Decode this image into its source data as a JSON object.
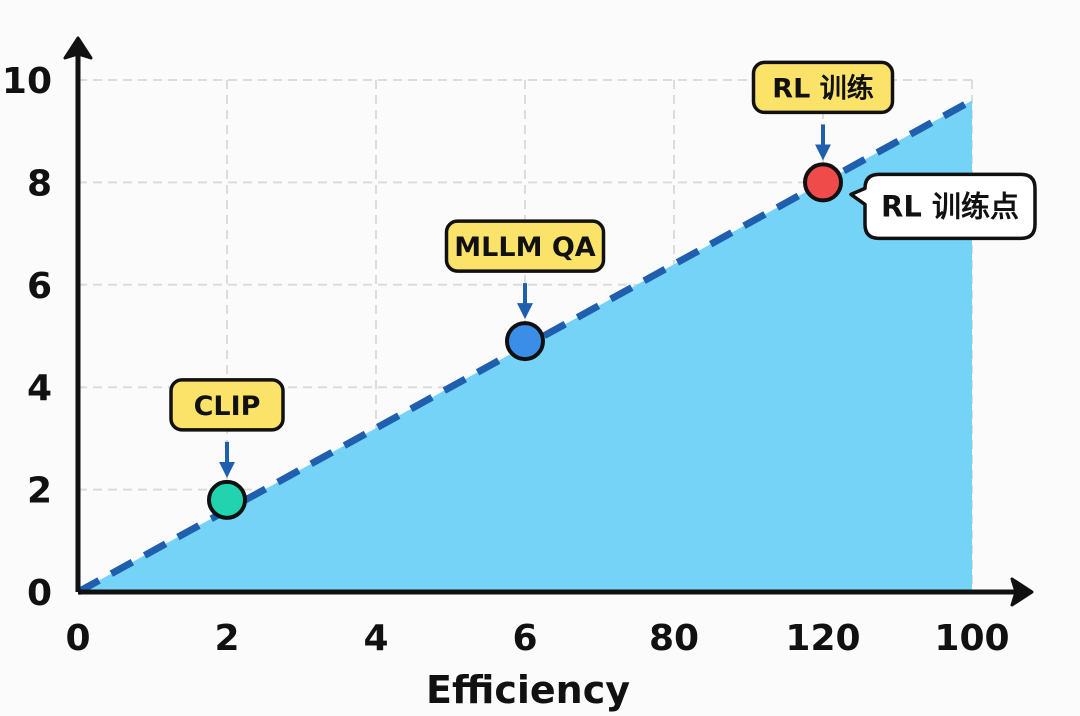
{
  "chart_data": {
    "type": "area",
    "xlabel": "Efficiency",
    "ylabel": "",
    "x_tick_labels": [
      "0",
      "2",
      "4",
      "6",
      "80",
      "120",
      "100"
    ],
    "y_ticks": [
      0,
      2,
      4,
      6,
      8,
      10
    ],
    "y_tick_labels": [
      "0",
      "2",
      "4",
      "6",
      "8",
      "10"
    ],
    "ylim": [
      0,
      10.5
    ],
    "grid": true,
    "trend_line": {
      "style": "dashed",
      "color": "#1f5fae",
      "from_y": 0,
      "to_y": 9.6
    },
    "area_color": "#74d3f7",
    "points": [
      {
        "label": "CLIP",
        "x": "2",
        "y": 1.8,
        "color": "#22d3b0"
      },
      {
        "label": "MLLM QA",
        "x": "6",
        "y": 4.9,
        "color": "#3b8ee8"
      },
      {
        "label": "RL 训练",
        "x": "120",
        "y": 8.0,
        "color": "#ef4b4b"
      }
    ],
    "annotations": [
      {
        "text": "RL 训练点",
        "target": "RL 训练",
        "style": "speech-bubble"
      }
    ]
  }
}
